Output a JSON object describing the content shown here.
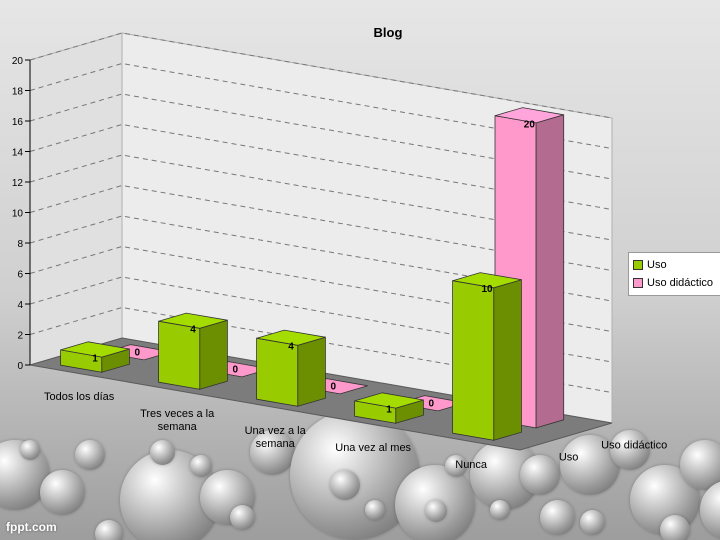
{
  "watermark": "fppt.com",
  "chart_data": {
    "type": "bar",
    "title": "Blog",
    "categories": [
      "Todos los días",
      "Tres veces a la semana",
      "Una vez a la semana",
      "Una vez al mes",
      "Nunca"
    ],
    "category_lines": [
      [
        "Todos los días"
      ],
      [
        "Tres veces a la",
        "semana"
      ],
      [
        "Una vez a la",
        "semana"
      ],
      [
        "Una vez al mes"
      ],
      [
        "Nunca"
      ]
    ],
    "series": [
      {
        "name": "Uso",
        "values": [
          1,
          4,
          4,
          1,
          10
        ],
        "color": "#99cc00"
      },
      {
        "name": "Uso didáctico",
        "values": [
          0,
          0,
          0,
          0,
          20
        ],
        "color": "#ff99cc"
      }
    ],
    "ylim": [
      0,
      20
    ],
    "yticks": [
      0,
      2,
      4,
      6,
      8,
      10,
      12,
      14,
      16,
      18,
      20
    ],
    "grid": true,
    "legend": "right",
    "depth_labels": [
      "Uso didáctico",
      "Uso"
    ]
  }
}
